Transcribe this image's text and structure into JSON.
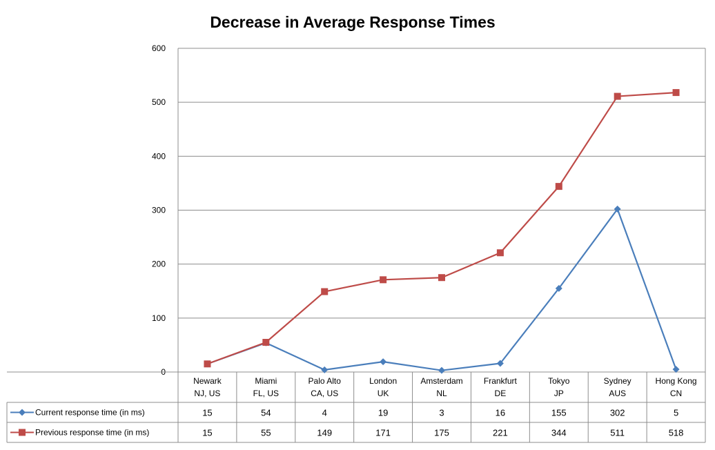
{
  "chart_data": {
    "type": "line",
    "title": "Decrease in Average Response Times",
    "xlabel": "",
    "ylabel": "",
    "ylim": [
      0,
      600
    ],
    "yticks": [
      0,
      100,
      200,
      300,
      400,
      500,
      600
    ],
    "grid": true,
    "legend": "data-table-left",
    "categories": [
      [
        "Newark",
        "NJ, US"
      ],
      [
        "Miami",
        "FL, US"
      ],
      [
        "Palo Alto",
        "CA, US"
      ],
      [
        "London",
        "UK"
      ],
      [
        "Amsterdam",
        "NL"
      ],
      [
        "Frankfurt",
        "DE"
      ],
      [
        "Tokyo",
        "JP"
      ],
      [
        "Sydney",
        "AUS"
      ],
      [
        "Hong Kong",
        "CN"
      ]
    ],
    "series": [
      {
        "name": "Current response time (in ms)",
        "color": "#4a7ebb",
        "marker": "diamond",
        "values": [
          15,
          54,
          4,
          19,
          3,
          16,
          155,
          302,
          5
        ]
      },
      {
        "name": "Previous response time (in ms)",
        "color": "#be4b48",
        "marker": "square",
        "values": [
          15,
          55,
          149,
          171,
          175,
          221,
          344,
          511,
          518
        ]
      }
    ]
  }
}
